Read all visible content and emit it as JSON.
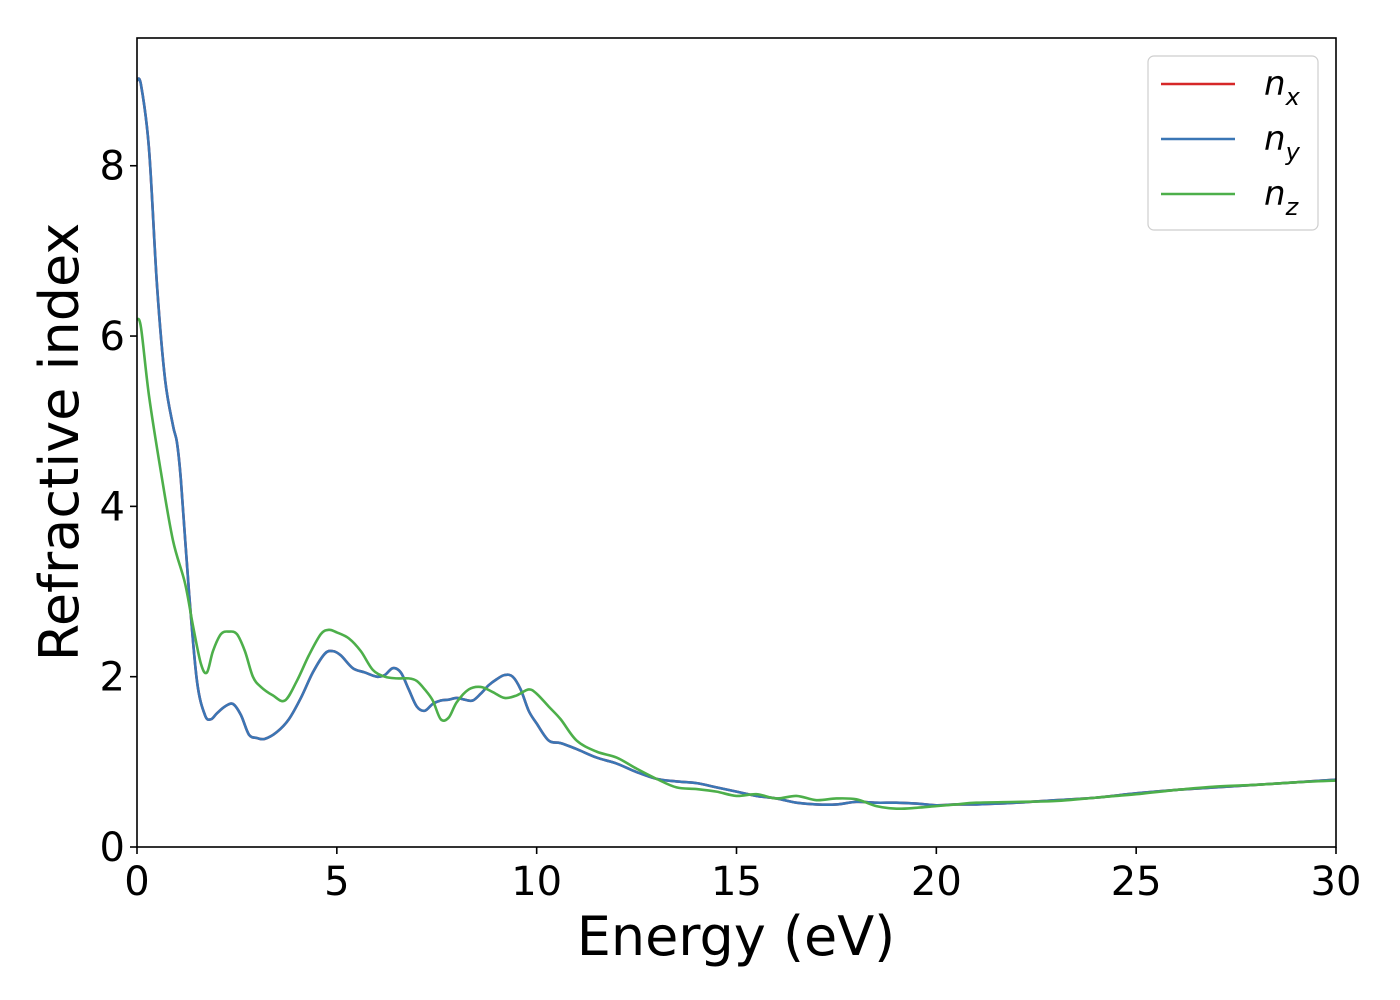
{
  "chart_data": {
    "type": "line",
    "xlabel": "Energy (eV)",
    "ylabel": "Refractive index",
    "xlim": [
      0,
      30
    ],
    "ylim": [
      0,
      9.5
    ],
    "xticks": [
      0,
      5,
      10,
      15,
      20,
      25,
      30
    ],
    "yticks": [
      0,
      2,
      4,
      6,
      8
    ],
    "grid": false,
    "legend_position": "top-right",
    "series": [
      {
        "name": "n_x",
        "label_main": "n",
        "label_sub": "x",
        "color": "#d62728",
        "x": [
          0,
          0.1,
          0.3,
          0.5,
          0.7,
          0.9,
          1.0,
          1.1,
          1.3,
          1.5,
          1.7,
          1.85,
          2.0,
          2.2,
          2.4,
          2.6,
          2.8,
          3.0,
          3.2,
          3.5,
          3.8,
          4.1,
          4.4,
          4.7,
          4.9,
          5.1,
          5.4,
          5.7,
          6.0,
          6.2,
          6.4,
          6.6,
          6.8,
          7.0,
          7.2,
          7.4,
          7.6,
          7.8,
          8.0,
          8.2,
          8.4,
          8.6,
          8.8,
          9.0,
          9.2,
          9.4,
          9.6,
          9.8,
          10.0,
          10.3,
          10.6,
          11.0,
          11.5,
          12.0,
          12.5,
          13.0,
          13.5,
          14.0,
          14.5,
          15.0,
          15.5,
          16.0,
          16.5,
          17.0,
          17.5,
          18.0,
          18.5,
          19.0,
          19.5,
          20.0,
          20.5,
          21.0,
          22.0,
          23.0,
          24.0,
          25.0,
          26.0,
          27.0,
          28.0,
          29.0,
          30.0
        ],
        "y": [
          9.0,
          8.95,
          8.2,
          6.6,
          5.5,
          4.95,
          4.75,
          4.3,
          3.0,
          1.95,
          1.55,
          1.5,
          1.57,
          1.65,
          1.68,
          1.55,
          1.32,
          1.28,
          1.27,
          1.35,
          1.5,
          1.75,
          2.05,
          2.27,
          2.3,
          2.25,
          2.1,
          2.05,
          2.0,
          2.02,
          2.1,
          2.05,
          1.85,
          1.65,
          1.6,
          1.68,
          1.72,
          1.73,
          1.75,
          1.73,
          1.72,
          1.8,
          1.9,
          1.97,
          2.02,
          2.0,
          1.85,
          1.6,
          1.45,
          1.25,
          1.22,
          1.15,
          1.05,
          0.98,
          0.88,
          0.8,
          0.77,
          0.75,
          0.7,
          0.65,
          0.6,
          0.57,
          0.52,
          0.5,
          0.5,
          0.53,
          0.52,
          0.52,
          0.51,
          0.49,
          0.5,
          0.5,
          0.52,
          0.55,
          0.58,
          0.63,
          0.67,
          0.7,
          0.73,
          0.76,
          0.79
        ]
      },
      {
        "name": "n_y",
        "label_main": "n",
        "label_sub": "y",
        "color": "#3a76b5",
        "x": [
          0,
          0.1,
          0.3,
          0.5,
          0.7,
          0.9,
          1.0,
          1.1,
          1.3,
          1.5,
          1.7,
          1.85,
          2.0,
          2.2,
          2.4,
          2.6,
          2.8,
          3.0,
          3.2,
          3.5,
          3.8,
          4.1,
          4.4,
          4.7,
          4.9,
          5.1,
          5.4,
          5.7,
          6.0,
          6.2,
          6.4,
          6.6,
          6.8,
          7.0,
          7.2,
          7.4,
          7.6,
          7.8,
          8.0,
          8.2,
          8.4,
          8.6,
          8.8,
          9.0,
          9.2,
          9.4,
          9.6,
          9.8,
          10.0,
          10.3,
          10.6,
          11.0,
          11.5,
          12.0,
          12.5,
          13.0,
          13.5,
          14.0,
          14.5,
          15.0,
          15.5,
          16.0,
          16.5,
          17.0,
          17.5,
          18.0,
          18.5,
          19.0,
          19.5,
          20.0,
          20.5,
          21.0,
          22.0,
          23.0,
          24.0,
          25.0,
          26.0,
          27.0,
          28.0,
          29.0,
          30.0
        ],
        "y": [
          9.0,
          8.95,
          8.2,
          6.6,
          5.5,
          4.95,
          4.75,
          4.3,
          3.0,
          1.95,
          1.55,
          1.5,
          1.57,
          1.65,
          1.68,
          1.55,
          1.32,
          1.28,
          1.27,
          1.35,
          1.5,
          1.75,
          2.05,
          2.27,
          2.3,
          2.25,
          2.1,
          2.05,
          2.0,
          2.02,
          2.1,
          2.05,
          1.85,
          1.65,
          1.6,
          1.68,
          1.72,
          1.73,
          1.75,
          1.73,
          1.72,
          1.8,
          1.9,
          1.97,
          2.02,
          2.0,
          1.85,
          1.6,
          1.45,
          1.25,
          1.22,
          1.15,
          1.05,
          0.98,
          0.88,
          0.8,
          0.77,
          0.75,
          0.7,
          0.65,
          0.6,
          0.57,
          0.52,
          0.5,
          0.5,
          0.53,
          0.52,
          0.52,
          0.51,
          0.49,
          0.5,
          0.5,
          0.52,
          0.55,
          0.58,
          0.63,
          0.67,
          0.7,
          0.73,
          0.76,
          0.79
        ]
      },
      {
        "name": "n_z",
        "label_main": "n",
        "label_sub": "z",
        "color": "#4daf4a",
        "x": [
          0,
          0.1,
          0.3,
          0.6,
          0.9,
          1.2,
          1.4,
          1.6,
          1.75,
          1.9,
          2.1,
          2.3,
          2.5,
          2.7,
          2.9,
          3.1,
          3.4,
          3.7,
          4.0,
          4.3,
          4.6,
          4.8,
          5.0,
          5.3,
          5.6,
          5.9,
          6.2,
          6.5,
          6.8,
          7.0,
          7.2,
          7.4,
          7.6,
          7.8,
          8.0,
          8.3,
          8.6,
          8.9,
          9.2,
          9.5,
          9.8,
          10.0,
          10.3,
          10.6,
          11.0,
          11.5,
          12.0,
          12.5,
          13.0,
          13.5,
          14.0,
          14.5,
          15.0,
          15.5,
          16.0,
          16.5,
          17.0,
          17.5,
          18.0,
          18.5,
          19.0,
          19.5,
          20.0,
          20.5,
          21.0,
          22.0,
          23.0,
          24.0,
          25.0,
          26.0,
          27.0,
          28.0,
          29.0,
          30.0
        ],
        "y": [
          6.2,
          6.1,
          5.3,
          4.4,
          3.6,
          3.1,
          2.6,
          2.15,
          2.05,
          2.3,
          2.5,
          2.53,
          2.5,
          2.3,
          2.0,
          1.88,
          1.78,
          1.72,
          1.95,
          2.25,
          2.5,
          2.55,
          2.52,
          2.45,
          2.3,
          2.08,
          2.0,
          1.98,
          1.98,
          1.95,
          1.85,
          1.72,
          1.5,
          1.52,
          1.7,
          1.85,
          1.88,
          1.82,
          1.75,
          1.78,
          1.85,
          1.8,
          1.65,
          1.5,
          1.25,
          1.12,
          1.05,
          0.92,
          0.8,
          0.7,
          0.68,
          0.65,
          0.6,
          0.62,
          0.57,
          0.6,
          0.55,
          0.57,
          0.56,
          0.48,
          0.45,
          0.46,
          0.48,
          0.5,
          0.52,
          0.53,
          0.54,
          0.58,
          0.62,
          0.67,
          0.71,
          0.73,
          0.76,
          0.78
        ]
      }
    ]
  }
}
